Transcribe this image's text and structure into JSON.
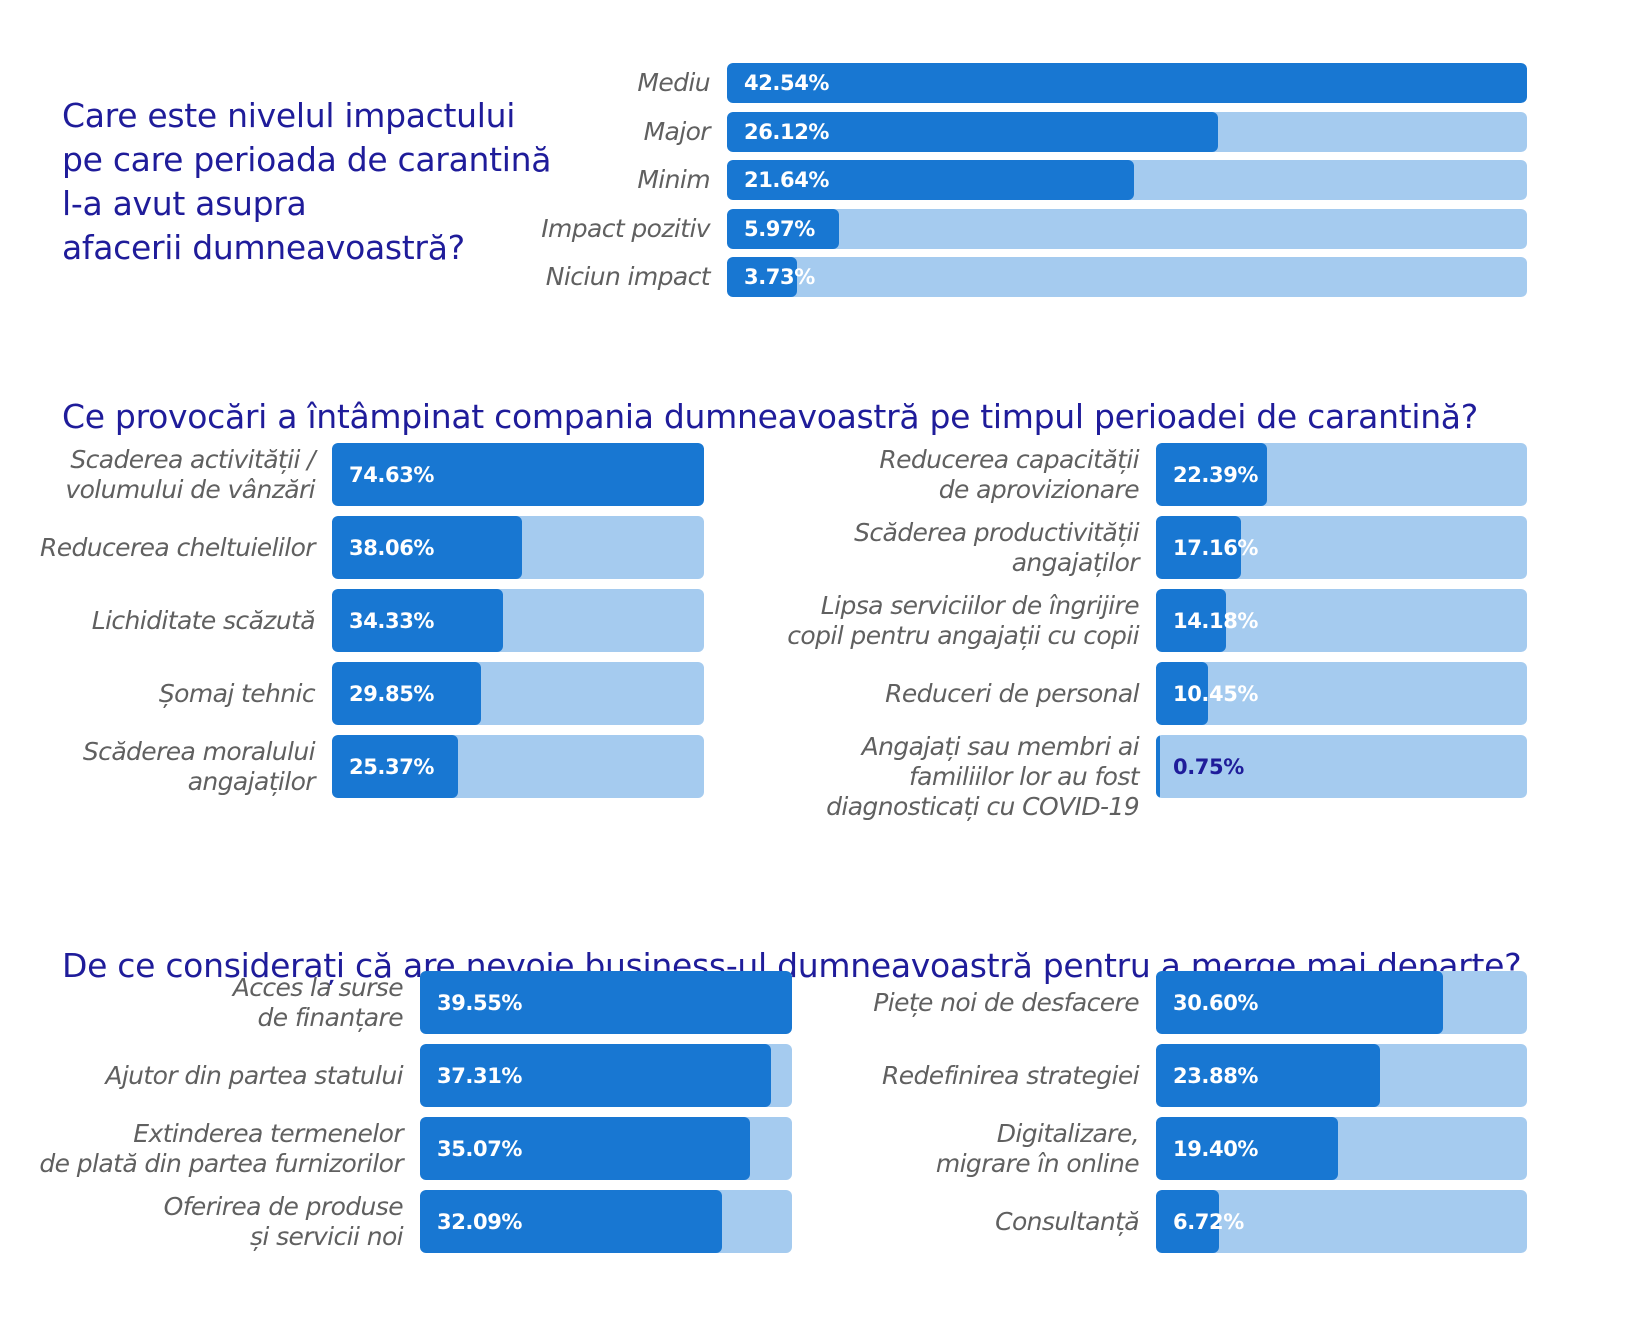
{
  "colors": {
    "title": "#1f1c9a",
    "fill": "#1877d2",
    "track": "#a5cbef",
    "label": "#606060",
    "value": "#ffffff"
  },
  "q1": {
    "title": "Care este nivelul impactului\npe care perioada de carantină\nl-a avut asupra\nafacerii dumneavoastră?"
  },
  "q2": {
    "title": "Ce provocări a întâmpinat compania dumneavoastră pe timpul perioadei de carantină?"
  },
  "q3": {
    "title": "De ce considerați că are nevoie business-ul dumneavoastră pentru a merge mai departe?"
  },
  "chart_data": [
    {
      "type": "bar",
      "orientation": "horizontal",
      "categories": [
        "Mediu",
        "Major",
        "Minim",
        "Impact pozitiv",
        "Niciun impact"
      ],
      "values": [
        42.54,
        26.12,
        21.64,
        5.97,
        3.73
      ],
      "value_labels": [
        "42.54%",
        "26.12%",
        "21.64%",
        "5.97%",
        "3.73%"
      ],
      "xlim": [
        0,
        42.54
      ]
    },
    {
      "type": "bar",
      "orientation": "horizontal",
      "categories": [
        "Scaderea activității /\nvolumului de vânzări",
        "Reducerea cheltuielilor",
        "Lichiditate scăzută",
        "Șomaj tehnic",
        "Scăderea moralului\nangajaților"
      ],
      "values": [
        74.63,
        38.06,
        34.33,
        29.85,
        25.37
      ],
      "value_labels": [
        "74.63%",
        "38.06%",
        "34.33%",
        "29.85%",
        "25.37%"
      ],
      "xlim": [
        0,
        74.63
      ]
    },
    {
      "type": "bar",
      "orientation": "horizontal",
      "categories": [
        "Reducerea capacității\nde aprovizionare",
        "Scăderea productivității\nangajaților",
        "Lipsa serviciilor de îngrijire\ncopil pentru angajații cu copii",
        "Reduceri de personal",
        "Angajați sau membri ai\nfamiliilor lor au fost\ndiagnosticați cu COVID-19"
      ],
      "values": [
        22.39,
        17.16,
        14.18,
        10.45,
        0.75
      ],
      "value_labels": [
        "22.39%",
        "17.16%",
        "14.18%",
        "10.45%",
        "0.75%"
      ],
      "xlim": [
        0,
        74.63
      ]
    },
    {
      "type": "bar",
      "orientation": "horizontal",
      "categories": [
        "Acces la surse\nde finanțare",
        "Ajutor din partea statului",
        "Extinderea termenelor\nde plată din partea furnizorilor",
        "Oferirea de produse\nși servicii noi"
      ],
      "values": [
        39.55,
        37.31,
        35.07,
        32.09
      ],
      "value_labels": [
        "39.55%",
        "37.31%",
        "35.07%",
        "32.09%"
      ],
      "xlim": [
        0,
        39.55
      ]
    },
    {
      "type": "bar",
      "orientation": "horizontal",
      "categories": [
        "Piețe noi de desfacere",
        "Redefinirea strategiei",
        "Digitalizare,\nmigrare în online",
        "Consultanță"
      ],
      "values": [
        30.6,
        23.88,
        19.4,
        6.72
      ],
      "value_labels": [
        "30.60%",
        "23.88%",
        "19.40%",
        "6.72%"
      ],
      "xlim": [
        0,
        39.55
      ]
    }
  ]
}
